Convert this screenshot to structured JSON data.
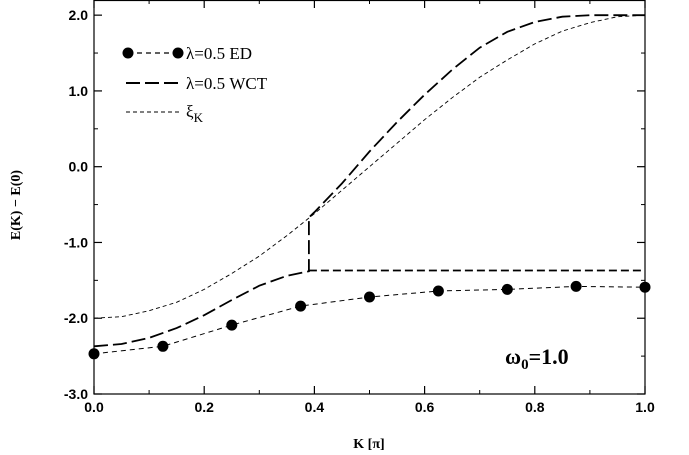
{
  "chart_data": {
    "type": "line",
    "xlabel": "K [π]",
    "ylabel": "E(K) − E(0)",
    "xlim": [
      0.0,
      1.0
    ],
    "ylim": [
      -3.0,
      2.2
    ],
    "xticks": [
      "0.0",
      "0.2",
      "0.4",
      "0.6",
      "0.8",
      "1.0"
    ],
    "yticks": [
      "-3.0",
      "-2.0",
      "-1.0",
      "0.0",
      "1.0",
      "2.0"
    ],
    "grid": false,
    "legend_position": "top-left",
    "annotation": {
      "base": "ω",
      "sub": "0",
      "rest": "=1.0"
    },
    "series": [
      {
        "name": "λ=0.5 ED",
        "style": "dashed-with-markers",
        "x": [
          0.0,
          0.125,
          0.25,
          0.375,
          0.5,
          0.625,
          0.75,
          0.875,
          1.0
        ],
        "y": [
          -2.47,
          -2.37,
          -2.09,
          -1.84,
          -1.72,
          -1.64,
          -1.62,
          -1.58,
          -1.59
        ]
      },
      {
        "name": "λ=0.5 WCT",
        "style": "long-dash",
        "x": [
          0.0,
          0.05,
          0.1,
          0.15,
          0.2,
          0.25,
          0.3,
          0.35,
          0.39,
          0.39,
          0.4,
          0.45,
          0.5,
          0.55,
          0.6,
          0.65,
          0.7,
          0.75,
          0.8,
          0.85,
          0.9,
          0.95,
          1.0
        ],
        "y": [
          -2.37,
          -2.34,
          -2.26,
          -2.13,
          -1.96,
          -1.76,
          -1.57,
          -1.44,
          -1.38,
          -0.67,
          -0.6,
          -0.22,
          0.2,
          0.59,
          0.95,
          1.28,
          1.57,
          1.78,
          1.91,
          1.98,
          2.0,
          2.0,
          2.0
        ],
        "branch_x": [
          0.39,
          0.4,
          0.5,
          0.6,
          0.7,
          0.8,
          0.9,
          1.0
        ],
        "branch_y": [
          -1.37,
          -1.37,
          -1.37,
          -1.37,
          -1.37,
          -1.37,
          -1.37,
          -1.37
        ]
      },
      {
        "name": "ξ",
        "name_sub": "K",
        "style": "short-dash",
        "x": [
          0.0,
          0.05,
          0.1,
          0.15,
          0.2,
          0.25,
          0.3,
          0.35,
          0.4,
          0.45,
          0.5,
          0.55,
          0.6,
          0.65,
          0.7,
          0.75,
          0.8,
          0.85,
          0.9,
          0.95,
          1.0
        ],
        "y": [
          -2.0,
          -1.98,
          -1.9,
          -1.79,
          -1.62,
          -1.41,
          -1.18,
          -0.91,
          -0.62,
          -0.31,
          0.0,
          0.31,
          0.62,
          0.91,
          1.18,
          1.41,
          1.62,
          1.79,
          1.9,
          1.98,
          2.0
        ]
      }
    ]
  }
}
